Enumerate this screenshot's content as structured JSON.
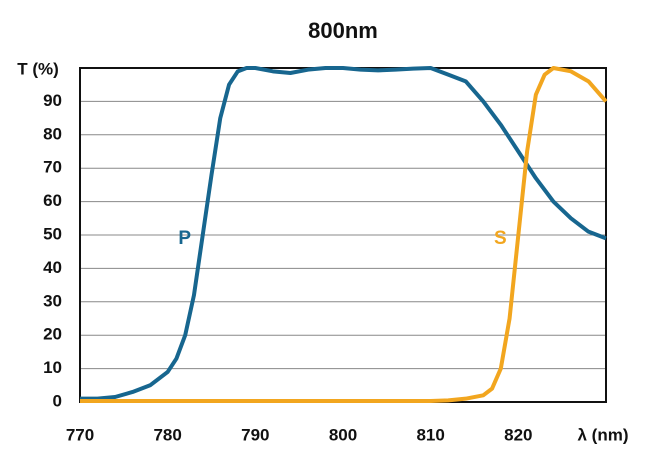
{
  "chart_data": {
    "type": "line",
    "title": "800nm",
    "ylabel": "T (%)",
    "xlabel": "λ (nm)",
    "xlim": [
      770,
      830
    ],
    "xticks": [
      770,
      780,
      790,
      800,
      810,
      820
    ],
    "ylim": [
      0,
      100
    ],
    "yticks": [
      0,
      10,
      20,
      30,
      40,
      50,
      60,
      70,
      80,
      90
    ],
    "grid": true,
    "series": [
      {
        "name": "P",
        "color": "#17668f",
        "x": [
          770,
          772,
          774,
          776,
          778,
          780,
          781,
          782,
          783,
          784,
          785,
          786,
          787,
          788,
          789,
          790,
          792,
          794,
          796,
          798,
          800,
          802,
          804,
          806,
          808,
          810,
          812,
          814,
          816,
          818,
          820,
          822,
          824,
          826,
          828,
          830
        ],
        "values": [
          1,
          1,
          1.5,
          3,
          5,
          9,
          13,
          20,
          32,
          50,
          68,
          85,
          95,
          99,
          100,
          100,
          99,
          98.5,
          99.5,
          100,
          100,
          99.5,
          99.3,
          99.5,
          99.8,
          100,
          98,
          96,
          90,
          83,
          75,
          67,
          60,
          55,
          51,
          49
        ]
      },
      {
        "name": "S",
        "color": "#f2a61f",
        "x": [
          770,
          780,
          790,
          800,
          810,
          812,
          814,
          816,
          817,
          818,
          819,
          820,
          821,
          822,
          823,
          824,
          826,
          828,
          830
        ],
        "values": [
          0.3,
          0.3,
          0.3,
          0.3,
          0.3,
          0.5,
          1,
          2,
          4,
          10,
          25,
          50,
          75,
          92,
          98,
          100,
          99,
          96,
          90
        ]
      }
    ]
  }
}
